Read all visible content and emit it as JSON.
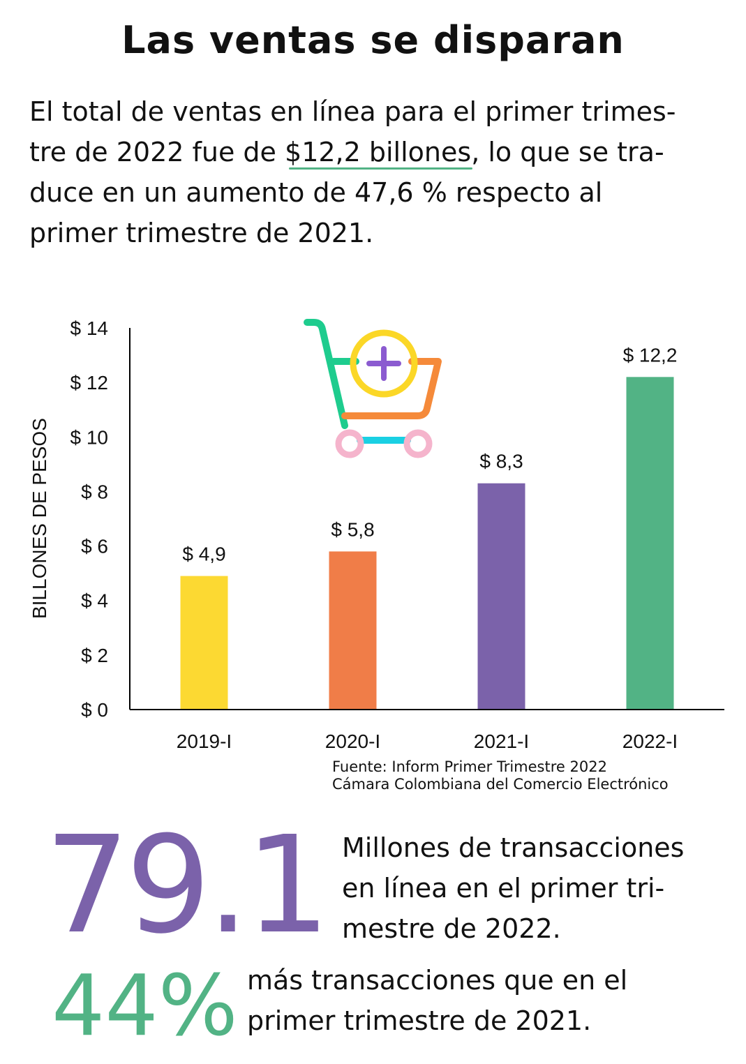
{
  "title": "Las ventas se disparan",
  "intro": {
    "line1": "El total de ventas en línea para el primer trimes-",
    "line2_pre": "tre de 2022 fue de ",
    "line2_highlight": "$12,2 billones",
    "line2_post": ", lo que se tra-",
    "line3": "duce en un aumento de 47,6 % respecto al",
    "line4": "primer trimestre de 2021."
  },
  "colors": {
    "yellow": "#fcd932",
    "orange": "#f07d48",
    "purple": "#7b62aa",
    "green": "#52b385",
    "cyan": "#1ad0e3",
    "pink": "#f5b4cc"
  },
  "cart_icon": "shopping-cart-plus-icon",
  "chart_data": {
    "type": "bar",
    "title": "",
    "xlabel": "",
    "ylabel": "BILLONES DE PESOS",
    "ylim": [
      0,
      14
    ],
    "yticks": [
      0,
      2,
      4,
      6,
      8,
      10,
      12,
      14
    ],
    "ytick_labels": [
      "$ 0",
      "$ 2",
      "$ 4",
      "$ 6",
      "$ 8",
      "$ 10",
      "$ 12",
      "$ 14"
    ],
    "categories": [
      "2019-I",
      "2020-I",
      "2021-I",
      "2022-I"
    ],
    "values": [
      4.9,
      5.8,
      8.3,
      12.2
    ],
    "data_labels": [
      "$ 4,9",
      "$ 5,8",
      "$ 8,3",
      "$ 12,2"
    ],
    "bar_colors": [
      "#fcd932",
      "#f07d48",
      "#7b62aa",
      "#52b385"
    ],
    "grid": false,
    "legend": "none"
  },
  "source": {
    "line1": "Fuente: Inform Primer Trimestre 2022",
    "line2": "Cámara Colombiana del Comercio Electrónico"
  },
  "stats": {
    "transactions_value": "79.1",
    "transactions_line1": "Millones de transacciones",
    "transactions_line2": "en línea en el primer tri-",
    "transactions_line3": "mestre de 2022.",
    "growth_value": "44%",
    "growth_line1": "más transacciones que en el",
    "growth_line2": "primer trimestre de 2021."
  }
}
